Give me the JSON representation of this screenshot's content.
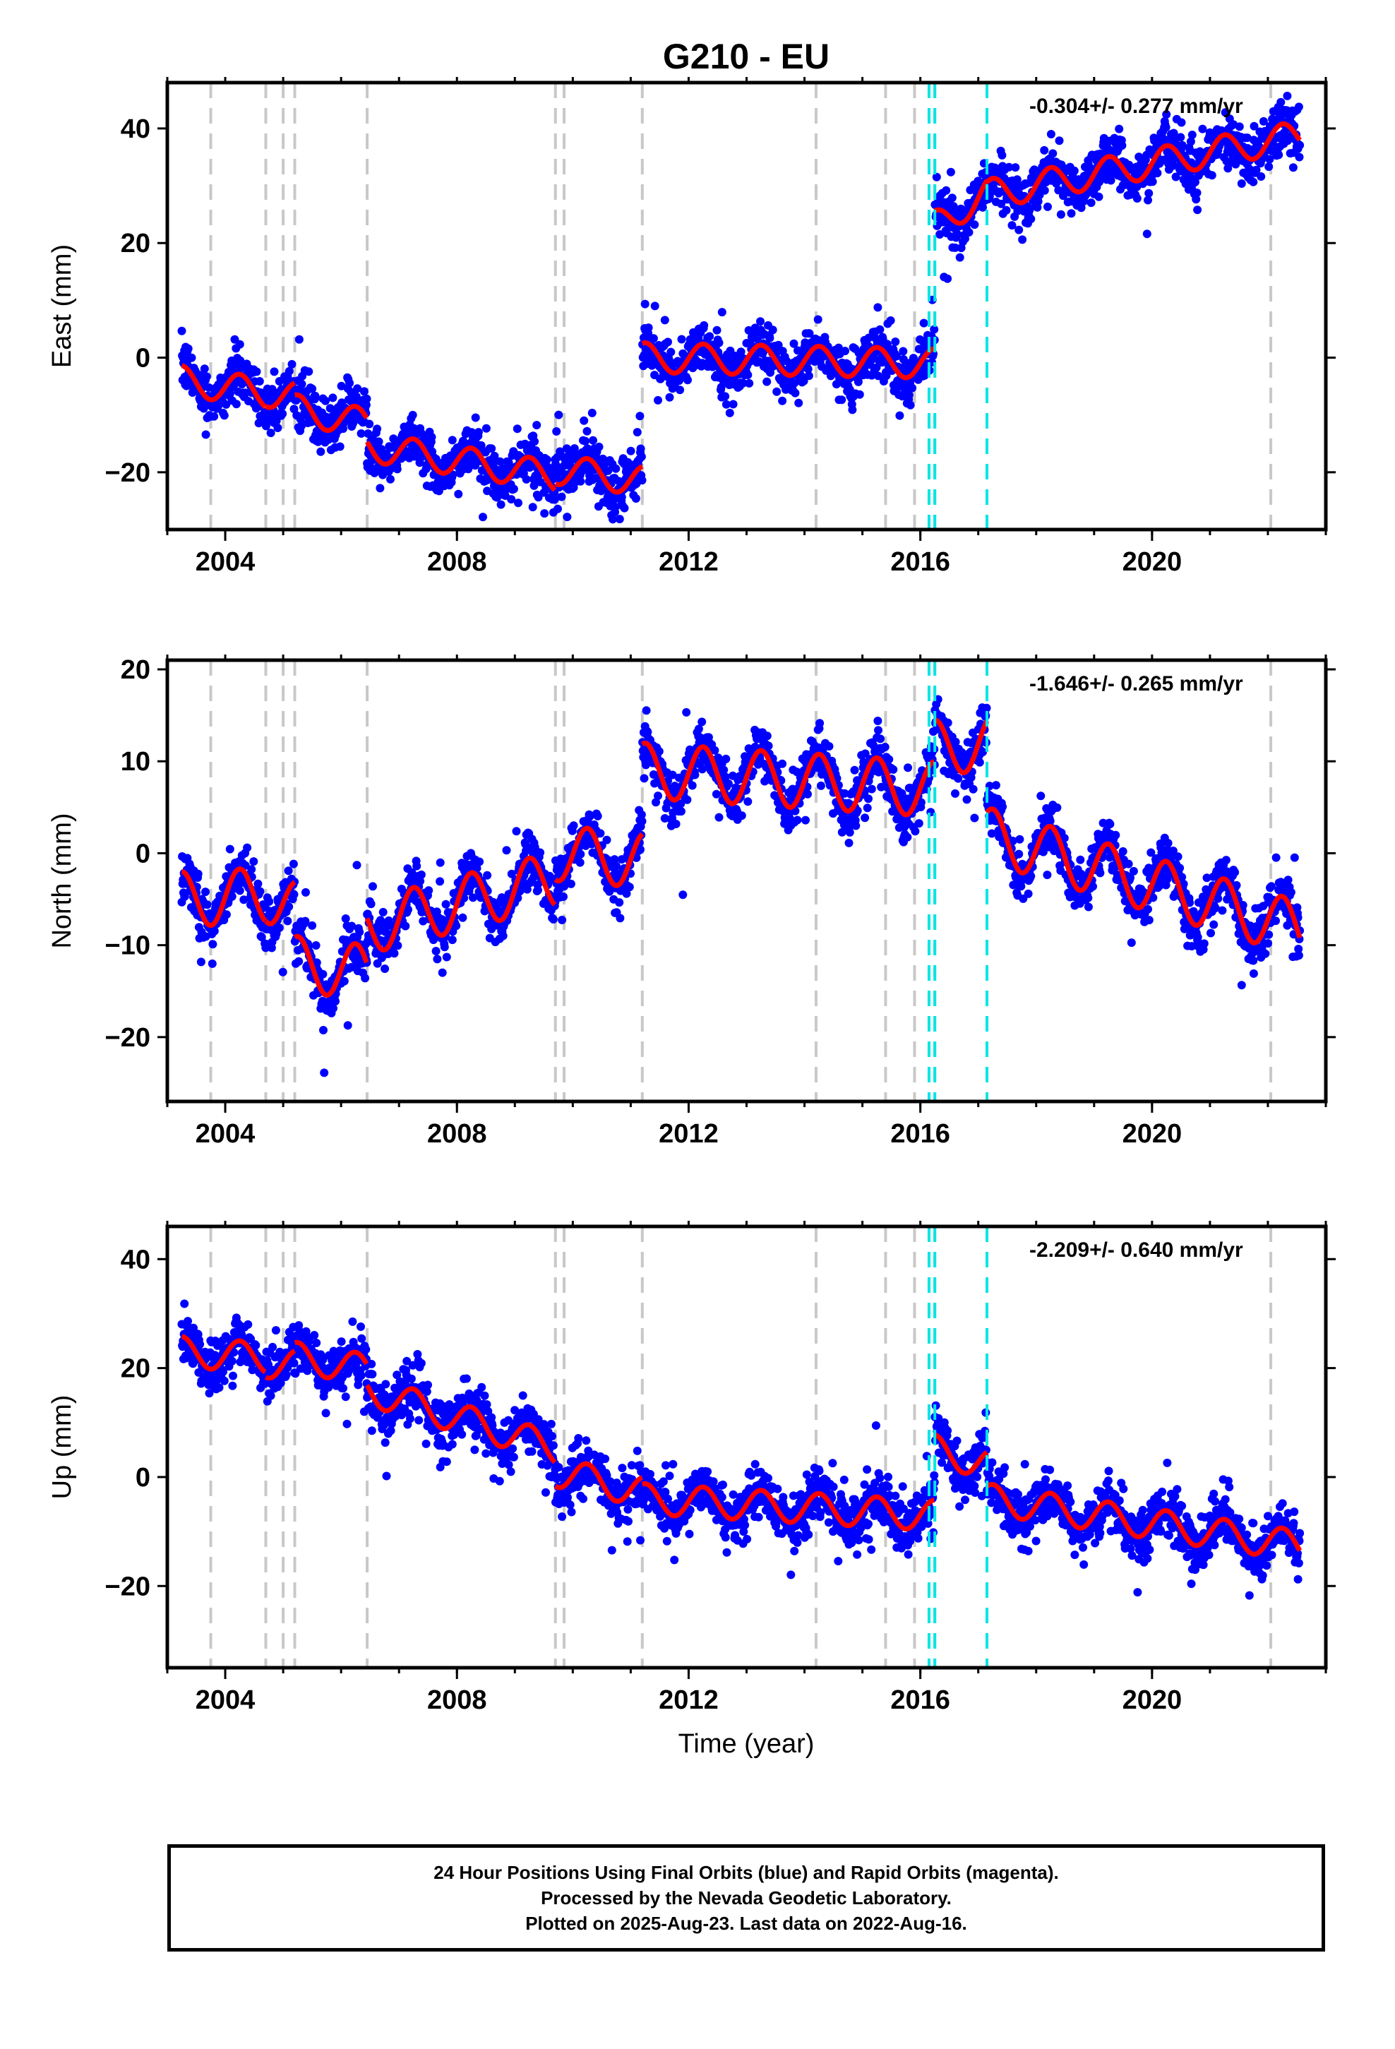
{
  "chart_data": {
    "type": "scatter",
    "title": "G210 - EU",
    "xlabel": "Time (year)",
    "xlim": [
      2003.0,
      2023.0
    ],
    "x_ticks": [
      2004,
      2008,
      2012,
      2016,
      2020
    ],
    "colors": {
      "data": "#0000ff",
      "model": "#ff0000",
      "event_gray": "#c8c8c8",
      "event_cyan": "#00e5e5"
    },
    "event_lines_gray": [
      2003.75,
      2004.7,
      2005.0,
      2005.2,
      2006.45,
      2009.7,
      2009.85,
      2011.2,
      2014.2,
      2015.4,
      2015.9,
      2016.25,
      2022.05
    ],
    "event_lines_cyan": [
      2016.15,
      2016.25,
      2017.15
    ],
    "panels": [
      {
        "name": "east",
        "ylabel": "East (mm)",
        "ylim": [
          -30,
          48
        ],
        "y_ticks": [
          -20,
          0,
          20,
          40
        ],
        "rate_label": "-0.304+/- 0.277 mm/yr",
        "segments": [
          {
            "start": 2003.25,
            "end": 2004.7,
            "offset": -4.0,
            "rate": -1.5,
            "amp": 2.6
          },
          {
            "start": 2004.7,
            "end": 2005.2,
            "offset": -6.0,
            "rate": -1.8,
            "amp": 2.6
          },
          {
            "start": 2005.2,
            "end": 2006.45,
            "offset": -9.0,
            "rate": -2.0,
            "amp": 2.6
          },
          {
            "start": 2006.45,
            "end": 2009.7,
            "offset": -15.5,
            "rate": -1.6,
            "amp": 2.6
          },
          {
            "start": 2009.7,
            "end": 2011.2,
            "offset": -19.5,
            "rate": -1.3,
            "amp": 2.6
          },
          {
            "start": 2011.2,
            "end": 2016.25,
            "offset": 0.0,
            "rate": -0.2,
            "amp": 2.6
          },
          {
            "start": 2016.25,
            "end": 2017.15,
            "offset": 23.0,
            "rate": 6.5,
            "amp": 2.6
          },
          {
            "start": 2017.15,
            "end": 2022.55,
            "offset": 28.5,
            "rate": 1.9,
            "amp": 2.6
          }
        ]
      },
      {
        "name": "north",
        "ylabel": "North (mm)",
        "ylim": [
          -27,
          21
        ],
        "y_ticks": [
          -20,
          -10,
          0,
          10,
          20
        ],
        "rate_label": "-1.646+/- 0.265 mm/yr",
        "segments": [
          {
            "start": 2003.25,
            "end": 2004.7,
            "offset": -5.0,
            "rate": 0.3,
            "amp": 3.0
          },
          {
            "start": 2004.7,
            "end": 2005.2,
            "offset": -4.5,
            "rate": -3.0,
            "amp": 3.0
          },
          {
            "start": 2005.2,
            "end": 2006.45,
            "offset": -12.0,
            "rate": -0.8,
            "amp": 3.0
          },
          {
            "start": 2006.45,
            "end": 2009.7,
            "offset": -8.0,
            "rate": 1.6,
            "amp": 3.0
          },
          {
            "start": 2009.7,
            "end": 2011.2,
            "offset": 0.0,
            "rate": -0.5,
            "amp": 3.0
          },
          {
            "start": 2011.2,
            "end": 2016.25,
            "offset": 9.0,
            "rate": -0.4,
            "amp": 3.0
          },
          {
            "start": 2016.25,
            "end": 2017.15,
            "offset": 11.5,
            "rate": 0.5,
            "amp": 3.0
          },
          {
            "start": 2017.15,
            "end": 2022.55,
            "offset": 2.0,
            "rate": -1.9,
            "amp": 3.0
          }
        ]
      },
      {
        "name": "up",
        "ylabel": "Up (mm)",
        "ylim": [
          -35,
          46
        ],
        "y_ticks": [
          -20,
          0,
          20,
          40
        ],
        "rate_label": "-2.209+/- 0.640 mm/yr",
        "segments": [
          {
            "start": 2003.25,
            "end": 2004.7,
            "offset": 23.0,
            "rate": -0.8,
            "amp": 2.8
          },
          {
            "start": 2004.7,
            "end": 2005.2,
            "offset": 21.0,
            "rate": -1.0,
            "amp": 2.8
          },
          {
            "start": 2005.2,
            "end": 2006.45,
            "offset": 22.0,
            "rate": -1.8,
            "amp": 2.8
          },
          {
            "start": 2006.45,
            "end": 2009.7,
            "offset": 16.0,
            "rate": -3.3,
            "amp": 2.8
          },
          {
            "start": 2009.7,
            "end": 2011.2,
            "offset": 1.0,
            "rate": -2.5,
            "amp": 2.8
          },
          {
            "start": 2011.2,
            "end": 2016.25,
            "offset": -4.0,
            "rate": -0.6,
            "amp": 2.8
          },
          {
            "start": 2016.25,
            "end": 2017.15,
            "offset": 5.0,
            "rate": -3.0,
            "amp": 2.8
          },
          {
            "start": 2017.15,
            "end": 2022.55,
            "offset": -4.0,
            "rate": -1.6,
            "amp": 2.8
          }
        ]
      }
    ]
  },
  "footer": {
    "line1": "24 Hour Positions Using Final Orbits (blue) and Rapid Orbits (magenta).",
    "line2": "Processed by the Nevada Geodetic Laboratory.",
    "line3": "Plotted on 2025-Aug-23. Last data on 2022-Aug-16."
  }
}
